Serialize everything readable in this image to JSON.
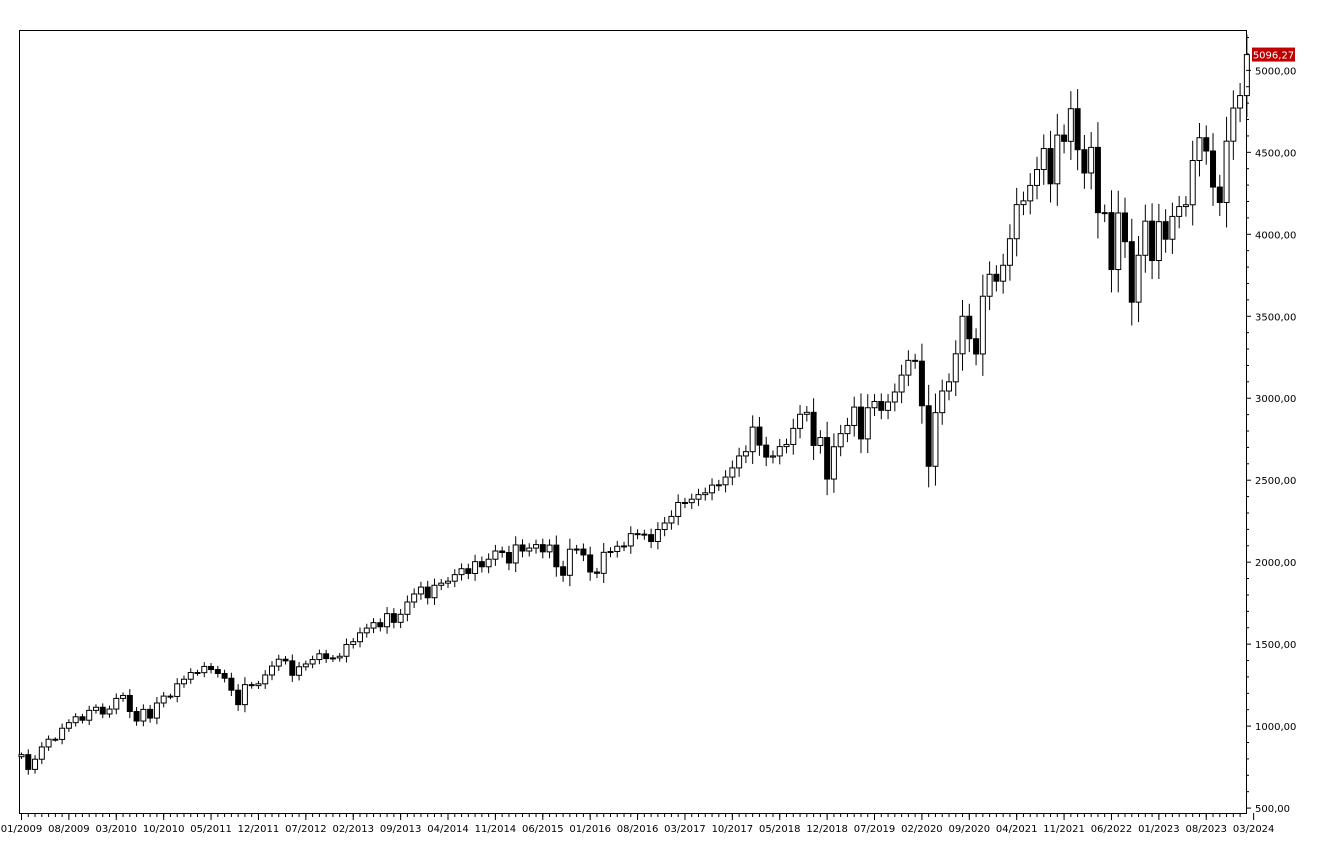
{
  "chart_data": {
    "type": "candlestick",
    "interval": "monthly",
    "title": "",
    "xlabel": "",
    "ylabel": "",
    "x_tick_labels": [
      "01/2009",
      "08/2009",
      "03/2010",
      "10/2010",
      "05/2011",
      "12/2011",
      "07/2012",
      "02/2013",
      "09/2013",
      "04/2014",
      "11/2014",
      "06/2015",
      "01/2016",
      "08/2016",
      "03/2017",
      "10/2017",
      "05/2018",
      "12/2018",
      "07/2019",
      "02/2020",
      "09/2020",
      "04/2021",
      "11/2021",
      "06/2022",
      "01/2023",
      "08/2023",
      "03/2024"
    ],
    "y_tick_labels": [
      "500,00",
      "1000,00",
      "1500,00",
      "2000,00",
      "2500,00",
      "3000,00",
      "3500,00",
      "4000,00",
      "4500,00",
      "5000,00"
    ],
    "ylim": [
      470,
      5240
    ],
    "last_price_label": "5096,27",
    "last_price": 5096.27,
    "colors": {
      "up_fill": "#ffffff",
      "down_fill": "#000000",
      "stroke": "#000000",
      "last_price_bg": "#c00000"
    },
    "start_month": "2009-01",
    "closes": [
      826,
      736,
      798,
      873,
      920,
      919,
      987,
      1021,
      1057,
      1036,
      1096,
      1115,
      1074,
      1104,
      1169,
      1187,
      1089,
      1031,
      1102,
      1049,
      1141,
      1183,
      1181,
      1258,
      1286,
      1327,
      1326,
      1364,
      1345,
      1321,
      1292,
      1219,
      1131,
      1253,
      1247,
      1258,
      1312,
      1366,
      1408,
      1398,
      1310,
      1362,
      1379,
      1406,
      1441,
      1412,
      1416,
      1426,
      1498,
      1515,
      1569,
      1598,
      1631,
      1606,
      1686,
      1633,
      1682,
      1757,
      1806,
      1848,
      1783,
      1859,
      1872,
      1884,
      1924,
      1960,
      1931,
      2003,
      1972,
      2018,
      2068,
      2059,
      1995,
      2105,
      2068,
      2086,
      2107,
      2063,
      2104,
      1972,
      1920,
      2079,
      2080,
      2044,
      1940,
      1932,
      2060,
      2065,
      2097,
      2099,
      2174,
      2171,
      2168,
      2126,
      2199,
      2239,
      2279,
      2364,
      2363,
      2384,
      2412,
      2423,
      2470,
      2472,
      2519,
      2575,
      2648,
      2674,
      2824,
      2714,
      2641,
      2648,
      2705,
      2718,
      2816,
      2902,
      2914,
      2712,
      2760,
      2507,
      2704,
      2784,
      2834,
      2946,
      2752,
      2942,
      2980,
      2926,
      2977,
      3038,
      3141,
      3231,
      3226,
      2954,
      2585,
      2912,
      3044,
      3100,
      3271,
      3500,
      3363,
      3270,
      3622,
      3756,
      3714,
      3811,
      3973,
      4181,
      4204,
      4298,
      4395,
      4523,
      4308,
      4605,
      4567,
      4766,
      4516,
      4374,
      4530,
      4132,
      4132,
      3785,
      4130,
      3955,
      3586,
      3872,
      4080,
      3840,
      4077,
      3970,
      4109,
      4169,
      4180,
      4450,
      4589,
      4508,
      4288,
      4194,
      4568,
      4770,
      4846,
      5096
    ]
  }
}
